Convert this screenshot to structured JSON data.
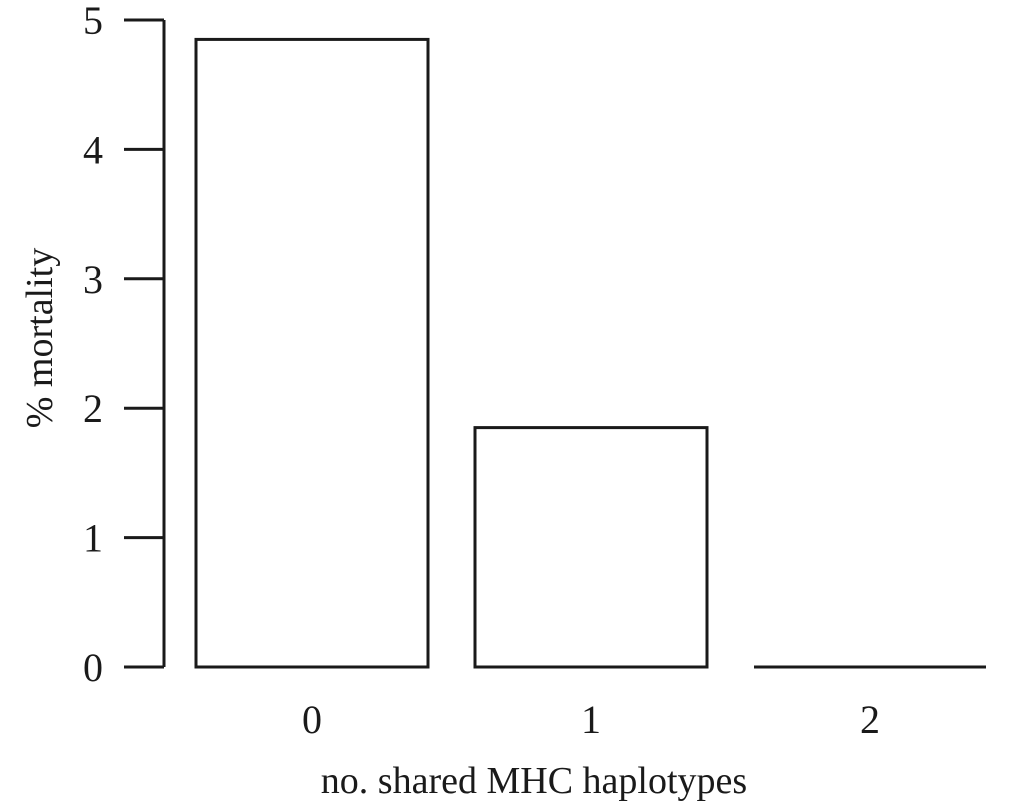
{
  "chart_data": {
    "type": "bar",
    "categories": [
      "0",
      "1",
      "2"
    ],
    "values": [
      4.85,
      1.85,
      0
    ],
    "xlabel": "no. shared MHC haplotypes",
    "ylabel": "% mortality",
    "ylim": [
      0,
      5
    ],
    "yticks": [
      0,
      1,
      2,
      3,
      4,
      5
    ],
    "grid": false,
    "legend": "none",
    "bar_fill": "#ffffff",
    "bar_stroke": "#1a1a1a"
  }
}
